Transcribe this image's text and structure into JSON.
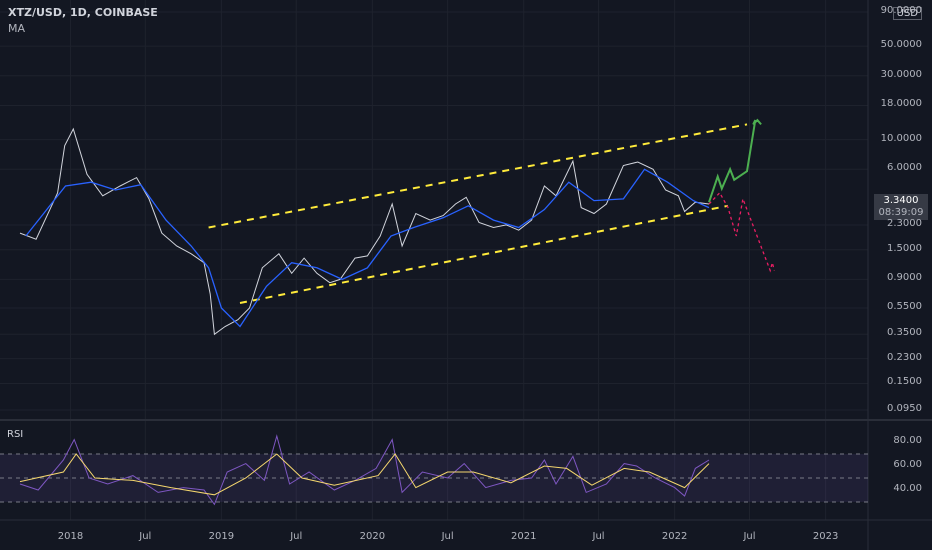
{
  "header": {
    "title": "XTZ/USD, 1D, COINBASE",
    "indicator": "MA"
  },
  "currency": "USD",
  "price_box": {
    "price": "3.3400",
    "countdown": "08:39:09"
  },
  "rsi_label": "RSI",
  "colors": {
    "background": "#131722",
    "price_line": "#d1d4dc",
    "ma_line": "#2962ff",
    "channel": "#ffeb3b",
    "bull_arrow": "#4caf50",
    "bear_arrow": "#e91e63",
    "rsi_line": "#7e57c2",
    "rsi_ma": "#f5d76e",
    "rsi_band": "#7e57c2"
  },
  "chart_data": [
    {
      "type": "line",
      "scale": "log",
      "y_ticks": [
        "90.0000",
        "50.0000",
        "30.0000",
        "18.0000",
        "10.0000",
        "6.0000",
        "3.3400",
        "2.3000",
        "1.5000",
        "0.9000",
        "0.5500",
        "0.3500",
        "0.2300",
        "0.1500",
        "0.0950"
      ],
      "x_ticks": [
        "2018",
        "Jul",
        "2019",
        "Jul",
        "2020",
        "Jul",
        "2021",
        "Jul",
        "2022",
        "Jul",
        "2023"
      ],
      "series": [
        {
          "name": "",
          "x": [
            "2017-09-01",
            "2017-10-10",
            "2017-12-01",
            "2017-12-18",
            "2018-01-08",
            "2018-02-10",
            "2018-03-20",
            "2018-05-01",
            "2018-06-10",
            "2018-07-10",
            "2018-08-10",
            "2018-09-15",
            "2018-10-20",
            "2018-11-20",
            "2018-12-05",
            "2018-12-15",
            "2019-01-10",
            "2019-02-10",
            "2019-03-10",
            "2019-04-10",
            "2019-05-20",
            "2019-06-20",
            "2019-07-20",
            "2019-08-20",
            "2019-09-20",
            "2019-10-15",
            "2019-11-20",
            "2019-12-20",
            "2020-01-20",
            "2020-02-18",
            "2020-03-13",
            "2020-04-15",
            "2020-05-20",
            "2020-06-20",
            "2020-07-20",
            "2020-08-15",
            "2020-09-15",
            "2020-10-20",
            "2020-11-20",
            "2020-12-20",
            "2021-01-20",
            "2021-02-20",
            "2021-03-20",
            "2021-04-30",
            "2021-05-20",
            "2021-06-20",
            "2021-07-20",
            "2021-08-30",
            "2021-10-04",
            "2021-11-10",
            "2021-12-10",
            "2022-01-10",
            "2022-01-25",
            "2022-02-20",
            "2022-03-25"
          ],
          "values": [
            2.0,
            1.8,
            4.0,
            9.0,
            12.0,
            5.5,
            3.8,
            4.5,
            5.2,
            3.6,
            2.0,
            1.6,
            1.4,
            1.2,
            0.7,
            0.35,
            0.4,
            0.45,
            0.55,
            1.1,
            1.4,
            1.0,
            1.3,
            1.0,
            0.85,
            0.9,
            1.3,
            1.35,
            1.9,
            3.3,
            1.6,
            2.8,
            2.5,
            2.7,
            3.3,
            3.7,
            2.4,
            2.2,
            2.3,
            2.1,
            2.5,
            4.5,
            3.8,
            6.9,
            3.1,
            2.8,
            3.3,
            6.4,
            6.8,
            6.0,
            4.2,
            3.8,
            2.9,
            3.4,
            3.3
          ]
        },
        {
          "name": "MA",
          "x": [
            "2017-09-15",
            "2017-12-20",
            "2018-02-20",
            "2018-04-20",
            "2018-06-20",
            "2018-08-20",
            "2018-10-20",
            "2018-12-01",
            "2019-01-01",
            "2019-02-15",
            "2019-04-20",
            "2019-06-20",
            "2019-08-20",
            "2019-10-20",
            "2019-12-20",
            "2020-02-15",
            "2020-04-10",
            "2020-06-20",
            "2020-08-20",
            "2020-10-20",
            "2020-12-20",
            "2021-02-20",
            "2021-04-20",
            "2021-06-20",
            "2021-08-30",
            "2021-10-20",
            "2021-12-15",
            "2022-02-15",
            "2022-03-25"
          ],
          "values": [
            1.9,
            4.5,
            4.8,
            4.2,
            4.6,
            2.5,
            1.6,
            1.1,
            0.55,
            0.4,
            0.8,
            1.2,
            1.1,
            0.9,
            1.1,
            1.9,
            2.2,
            2.6,
            3.2,
            2.5,
            2.2,
            3.0,
            4.8,
            3.5,
            3.6,
            6.0,
            4.8,
            3.5,
            3.1
          ]
        }
      ],
      "projection_bull": {
        "x": [
          "2022-03-25",
          "2022-04-15",
          "2022-04-25",
          "2022-05-15",
          "2022-05-25",
          "2022-06-25",
          "2022-07-15",
          "2022-07-10",
          "2022-07-20",
          "2022-07-29"
        ],
        "values": [
          3.4,
          5.3,
          4.3,
          6.0,
          5.0,
          5.8,
          14.0,
          13.0,
          14.0,
          13.0
        ]
      },
      "projection_bear": {
        "x": [
          "2022-03-25",
          "2022-04-20",
          "2022-05-10",
          "2022-05-30",
          "2022-06-15",
          "2022-08-20",
          "2022-08-25",
          "2022-08-30"
        ],
        "values": [
          3.3,
          4.0,
          3.1,
          1.9,
          3.6,
          1.05,
          1.2,
          1.05
        ]
      },
      "channel_upper": {
        "x": [
          "2018-12-01",
          "2022-06-25"
        ],
        "values": [
          2.2,
          13.0
        ]
      },
      "channel_lower": {
        "x": [
          "2019-02-15",
          "2022-05-10"
        ],
        "values": [
          0.6,
          3.2
        ]
      }
    },
    {
      "type": "line",
      "y_ticks": [
        "80.00",
        "60.00",
        "40.00"
      ],
      "y_range": [
        35,
        85
      ],
      "bands": [
        70,
        50,
        30
      ],
      "series": [
        {
          "name": "",
          "x": [
            "2017-09-01",
            "2017-10-15",
            "2017-12-15",
            "2018-01-10",
            "2018-02-15",
            "2018-04-01",
            "2018-06-01",
            "2018-08-01",
            "2018-10-01",
            "2018-11-20",
            "2018-12-15",
            "2019-01-15",
            "2019-03-01",
            "2019-04-15",
            "2019-05-15",
            "2019-06-15",
            "2019-08-01",
            "2019-10-01",
            "2019-11-20",
            "2020-01-10",
            "2020-02-18",
            "2020-03-13",
            "2020-05-01",
            "2020-07-01",
            "2020-08-10",
            "2020-10-01",
            "2020-12-01",
            "2021-01-20",
            "2021-02-20",
            "2021-03-20",
            "2021-04-30",
            "2021-06-01",
            "2021-07-20",
            "2021-09-01",
            "2021-10-01",
            "2021-11-15",
            "2022-01-01",
            "2022-01-25",
            "2022-02-20",
            "2022-03-25"
          ],
          "values": [
            45,
            40,
            65,
            82,
            50,
            45,
            52,
            38,
            42,
            40,
            28,
            55,
            62,
            48,
            85,
            45,
            55,
            40,
            48,
            58,
            82,
            38,
            55,
            50,
            62,
            42,
            48,
            50,
            65,
            45,
            68,
            38,
            45,
            62,
            60,
            50,
            42,
            35,
            58,
            65
          ]
        },
        {
          "name": "",
          "x": [
            "2017-09-01",
            "2017-12-15",
            "2018-01-15",
            "2018-03-01",
            "2018-06-01",
            "2018-09-01",
            "2018-12-15",
            "2019-03-01",
            "2019-05-15",
            "2019-07-15",
            "2019-10-01",
            "2020-01-15",
            "2020-02-25",
            "2020-04-15",
            "2020-07-01",
            "2020-09-01",
            "2020-12-01",
            "2021-02-20",
            "2021-04-15",
            "2021-06-15",
            "2021-09-01",
            "2021-11-01",
            "2022-01-25",
            "2022-03-25"
          ],
          "values": [
            47,
            55,
            70,
            50,
            48,
            42,
            36,
            50,
            70,
            50,
            44,
            52,
            70,
            42,
            55,
            55,
            46,
            60,
            58,
            44,
            58,
            55,
            42,
            62
          ]
        }
      ]
    }
  ]
}
